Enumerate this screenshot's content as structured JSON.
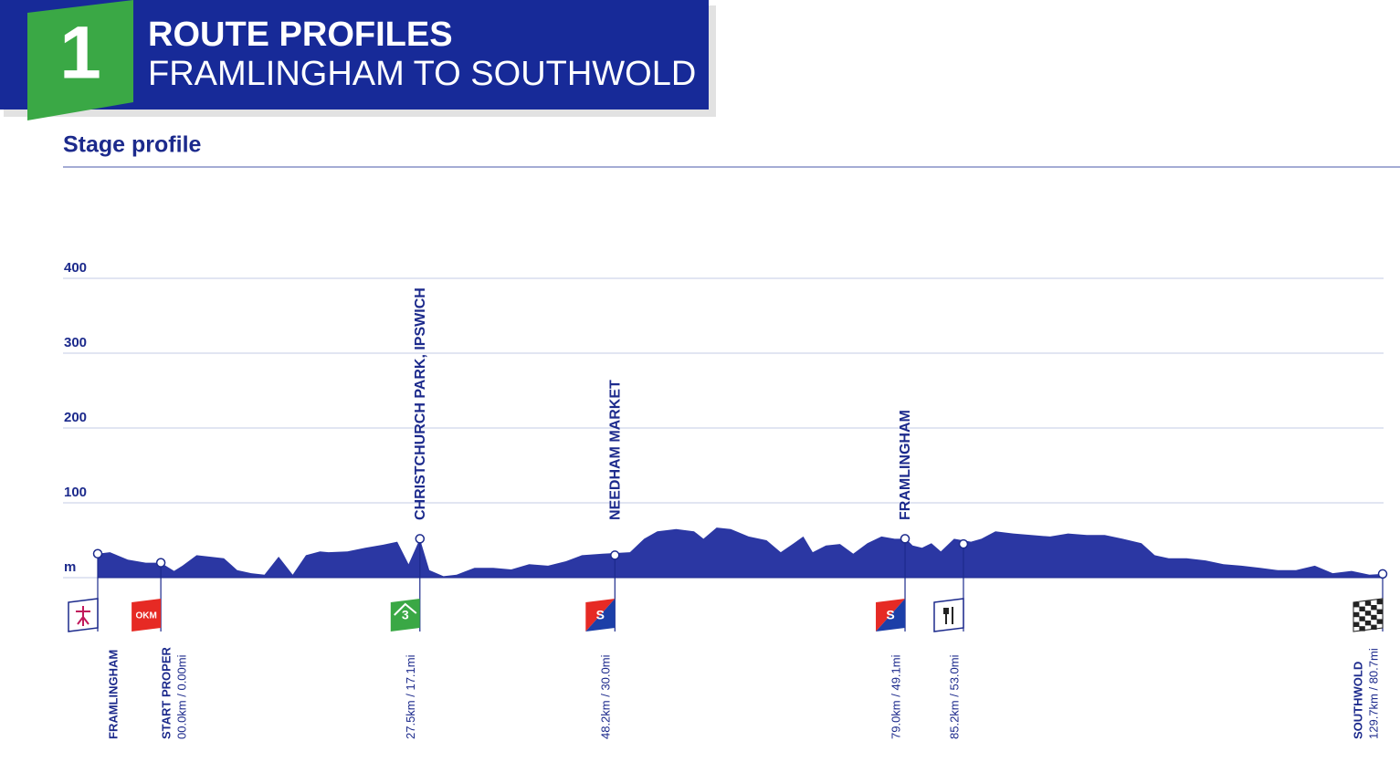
{
  "header": {
    "number": "1",
    "title": "ROUTE PROFILES",
    "subtitle": "FRAMLINGHAM TO SOUTHWOLD"
  },
  "chart_data": {
    "type": "area",
    "title": "Stage profile",
    "color": "#2b37a3",
    "xlim": [
      -6.7,
      129.7
    ],
    "ylim": [
      0,
      400
    ],
    "yticks": [
      {
        "value": 0,
        "label": "m"
      },
      100,
      200,
      300,
      400
    ],
    "grid": true,
    "x": [
      -6.7,
      -5.4,
      -3.5,
      -1.6,
      0,
      1.4,
      2.3,
      3.8,
      5.2,
      6.7,
      8.1,
      9.6,
      11.0,
      12.5,
      14.0,
      15.4,
      16.9,
      17.8,
      19.8,
      21.7,
      23.6,
      25.1,
      26.3,
      27.5,
      28.5,
      30.0,
      31.4,
      33.3,
      35.3,
      37.2,
      39.1,
      41.1,
      43.0,
      44.7,
      46.9,
      49.8,
      51.3,
      52.7,
      54.7,
      56.6,
      57.6,
      59.0,
      60.5,
      62.4,
      64.3,
      65.8,
      67.2,
      68.2,
      69.2,
      70.6,
      72.1,
      73.5,
      75.0,
      76.5,
      77.9,
      79.1,
      79.8,
      80.8,
      81.8,
      82.8,
      84.2,
      86.0,
      87.1,
      88.6,
      90.5,
      92.4,
      94.4,
      96.3,
      98.3,
      100.2,
      102.1,
      104.1,
      105.5,
      107.0,
      108.9,
      110.9,
      112.8,
      114.7,
      116.7,
      118.6,
      120.5,
      122.5,
      124.4,
      126.4,
      128.3,
      129.7
    ],
    "series": [
      {
        "name": "Elevation",
        "values": [
          32,
          34,
          24,
          20,
          20,
          9,
          16,
          30,
          28,
          26,
          10,
          6,
          4,
          28,
          4,
          30,
          35,
          34,
          35,
          40,
          44,
          48,
          18,
          52,
          10,
          2,
          4,
          13,
          13,
          11,
          18,
          16,
          22,
          30,
          32,
          34,
          52,
          62,
          65,
          62,
          52,
          67,
          65,
          55,
          50,
          34,
          46,
          55,
          34,
          43,
          45,
          32,
          46,
          55,
          52,
          52,
          43,
          40,
          46,
          35,
          52,
          48,
          52,
          62,
          59,
          57,
          55,
          59,
          57,
          57,
          52,
          46,
          30,
          26,
          26,
          23,
          18,
          16,
          13,
          10,
          10,
          16,
          6,
          9,
          4,
          5
        ]
      }
    ],
    "markers": [
      {
        "km": -6.7,
        "elevation": 32,
        "name": "FRAMLINGHAM",
        "icon": "start"
      },
      {
        "km": 0,
        "elevation": 20,
        "name": "START PROPER",
        "distance": "00.0km / 0.00mi",
        "icon": "neutral",
        "icon_text": "OKM"
      },
      {
        "km": 27.5,
        "elevation": 52,
        "top": "CHRISTCHURCH PARK, IPSWICH",
        "distance": "27.5km / 17.1mi",
        "icon": "climb",
        "icon_text": "3"
      },
      {
        "km": 48.2,
        "elevation": 30,
        "top": "NEEDHAM MARKET",
        "distance": "48.2km / 30.0mi",
        "icon": "sprint",
        "icon_text": "S"
      },
      {
        "km": 79.0,
        "elevation": 52,
        "top": "FRAMLINGHAM",
        "distance": "79.0km / 49.1mi",
        "icon": "sprint",
        "icon_text": "S"
      },
      {
        "km": 85.2,
        "elevation": 45,
        "distance": "85.2km / 53.0mi",
        "icon": "feed"
      },
      {
        "km": 129.7,
        "elevation": 5,
        "name": "SOUTHWOLD",
        "distance": "129.7km / 80.7mi",
        "icon": "finish"
      }
    ]
  }
}
